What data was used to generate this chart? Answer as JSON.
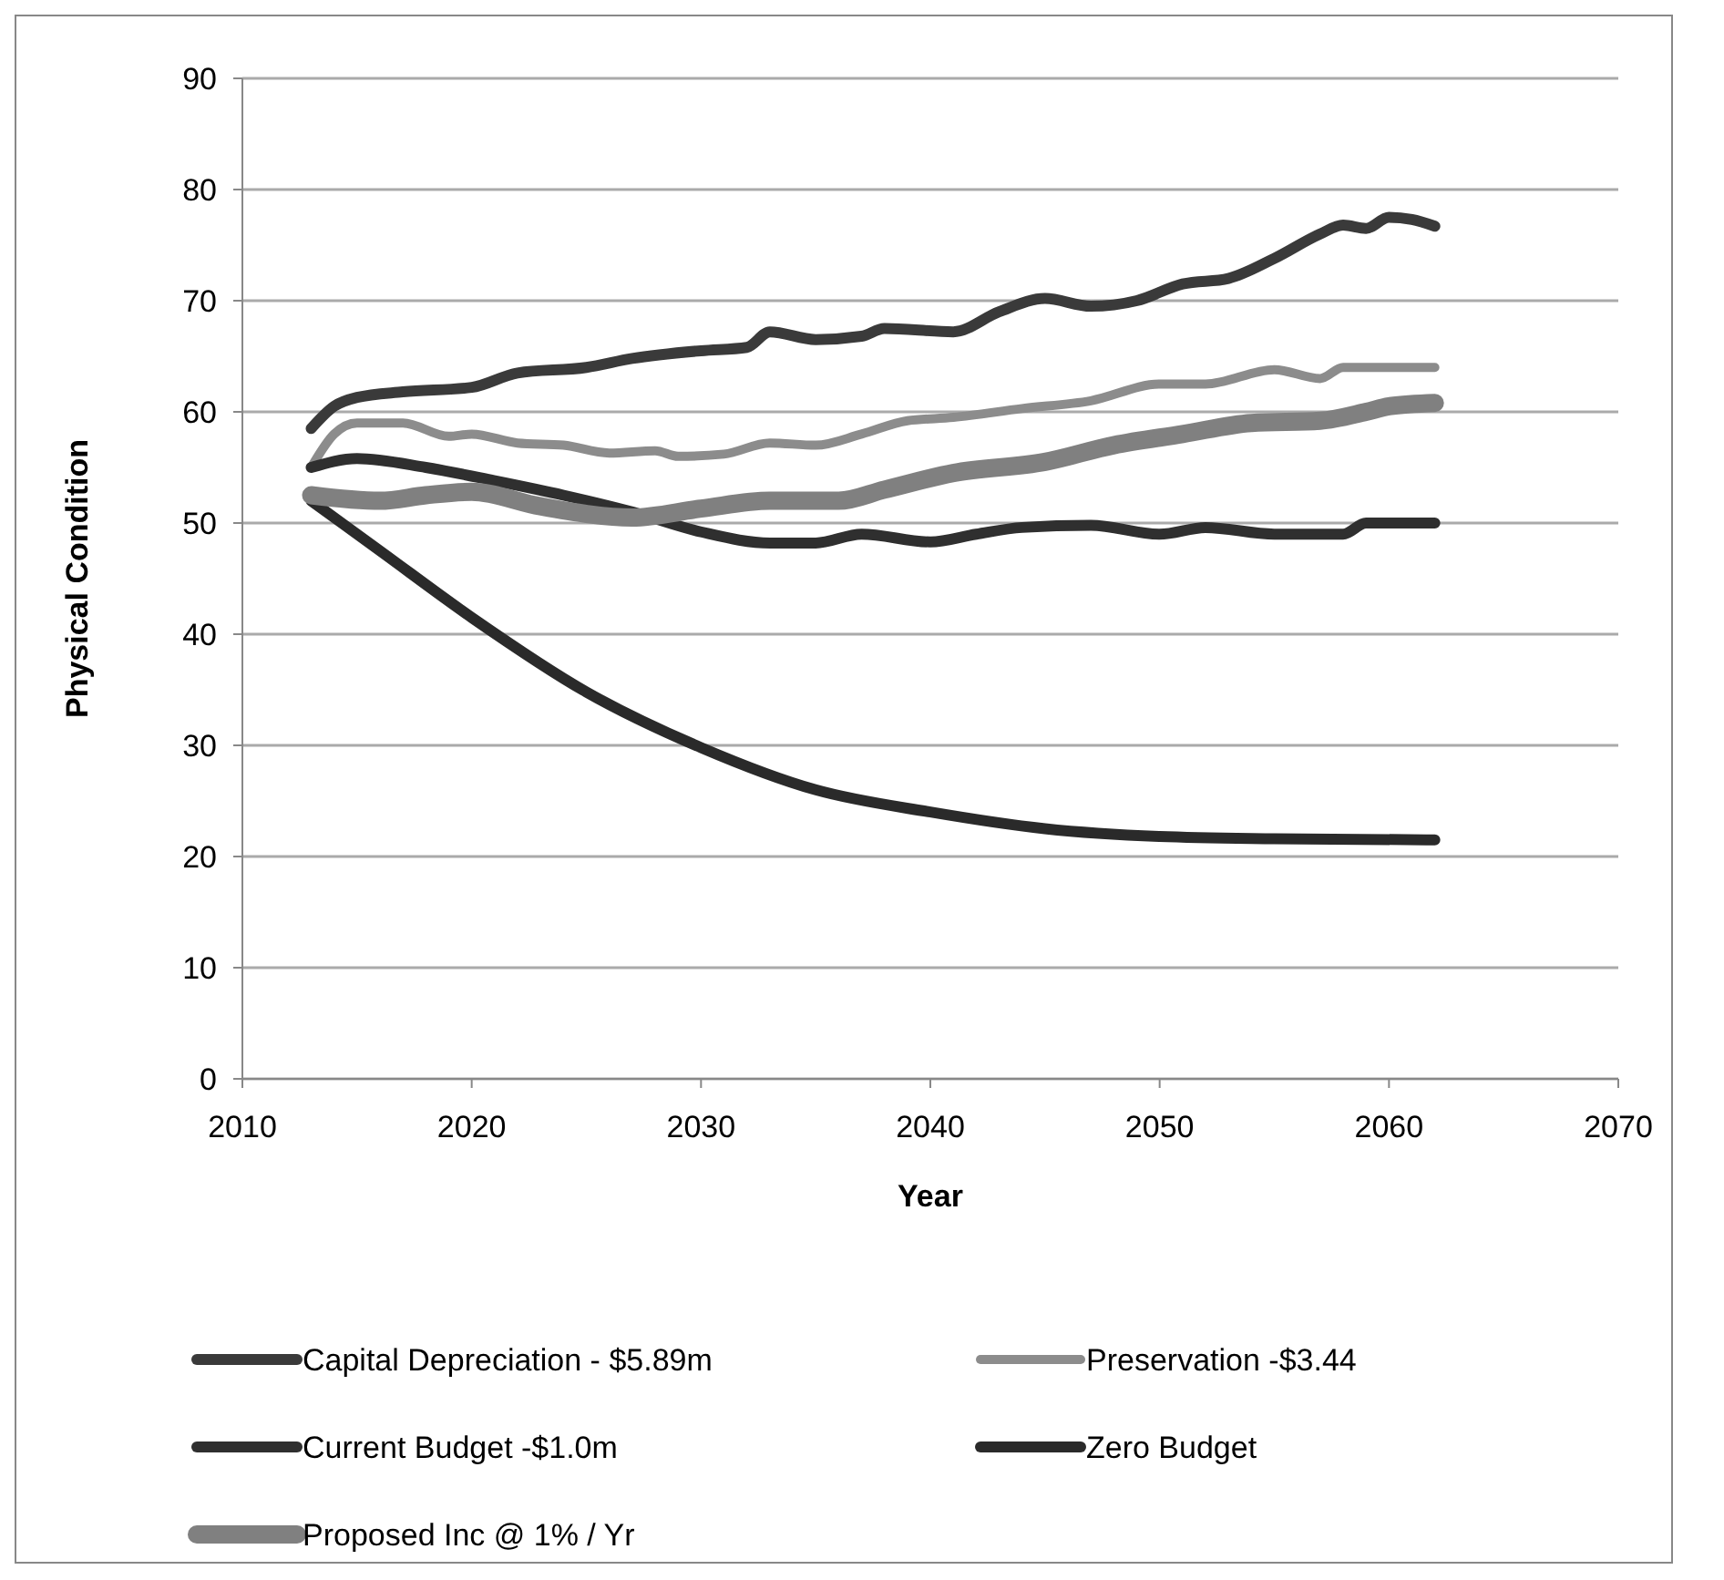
{
  "chart_data": {
    "type": "line",
    "xlabel": "Year",
    "ylabel": "Physical Condition",
    "xlim": [
      2010,
      2070
    ],
    "xticks": [
      2010,
      2020,
      2030,
      2040,
      2050,
      2060,
      2070
    ],
    "ylim": [
      0,
      90
    ],
    "yticks": [
      0,
      10,
      20,
      30,
      40,
      50,
      60,
      70,
      80,
      90
    ],
    "grid": "y",
    "legend": "bottom",
    "marker": "none",
    "line_style": "solid",
    "series": [
      {
        "name": "Capital Depreciation - $5.89m",
        "color": "#3a3a3a",
        "x": [
          2013,
          2014,
          2015,
          2017,
          2020,
          2022,
          2025,
          2027,
          2030,
          2032,
          2033,
          2035,
          2037,
          2038,
          2041,
          2043,
          2045,
          2047,
          2049,
          2051,
          2053,
          2055,
          2057,
          2058,
          2059,
          2060,
          2061,
          2062
        ],
        "values": [
          58.5,
          60.5,
          61.3,
          61.8,
          62.2,
          63.5,
          64,
          64.8,
          65.5,
          65.8,
          67.2,
          66.5,
          66.8,
          67.5,
          67.2,
          69,
          70.2,
          69.5,
          70,
          71.5,
          72,
          73.8,
          76,
          76.8,
          76.5,
          77.5,
          77.3,
          76.7
        ]
      },
      {
        "name": "Preservation -$3.44",
        "color": "#8c8c8c",
        "x": [
          2013,
          2014,
          2015,
          2017,
          2019,
          2020,
          2022,
          2024,
          2026,
          2028,
          2029,
          2031,
          2033,
          2035,
          2037,
          2039,
          2041,
          2044,
          2047,
          2050,
          2052,
          2055,
          2057,
          2058,
          2060,
          2062
        ],
        "values": [
          55,
          58,
          59,
          59,
          57.8,
          58,
          57.2,
          57,
          56.3,
          56.5,
          56,
          56.2,
          57.2,
          57,
          58,
          59.2,
          59.5,
          60.3,
          61,
          62.5,
          62.5,
          63.8,
          63,
          64,
          64,
          64
        ]
      },
      {
        "name": "Current Budget -$1.0m",
        "color": "#2f2f2f",
        "x": [
          2013,
          2015,
          2018,
          2021,
          2024,
          2027,
          2030,
          2033,
          2035,
          2037,
          2040,
          2042,
          2044,
          2047,
          2050,
          2052,
          2055,
          2058,
          2059,
          2062
        ],
        "values": [
          55,
          55.8,
          55,
          53.8,
          52.5,
          51,
          49.2,
          48.2,
          48.2,
          49,
          48.3,
          49,
          49.6,
          49.8,
          49,
          49.6,
          49,
          49,
          50,
          50
        ]
      },
      {
        "name": "Zero Budget",
        "color": "#2a2a2a",
        "x": [
          2013,
          2016,
          2020,
          2025,
          2030,
          2035,
          2040,
          2045,
          2050,
          2055,
          2062
        ],
        "values": [
          52,
          47.5,
          41.5,
          34.8,
          29.8,
          26,
          24,
          22.5,
          21.8,
          21.6,
          21.5
        ]
      },
      {
        "name": "Proposed Inc @ 1% / Yr",
        "color": "#808080",
        "x": [
          2013,
          2016,
          2018,
          2020,
          2023,
          2027,
          2030,
          2033,
          2036,
          2038,
          2041,
          2045,
          2048,
          2051,
          2054,
          2057,
          2059,
          2060,
          2062
        ],
        "values": [
          52.5,
          52,
          52.5,
          52.8,
          51.5,
          50.5,
          51.3,
          52,
          52,
          53,
          54.5,
          55.5,
          57,
          58,
          59,
          59.2,
          60,
          60.5,
          60.8
        ]
      }
    ]
  }
}
